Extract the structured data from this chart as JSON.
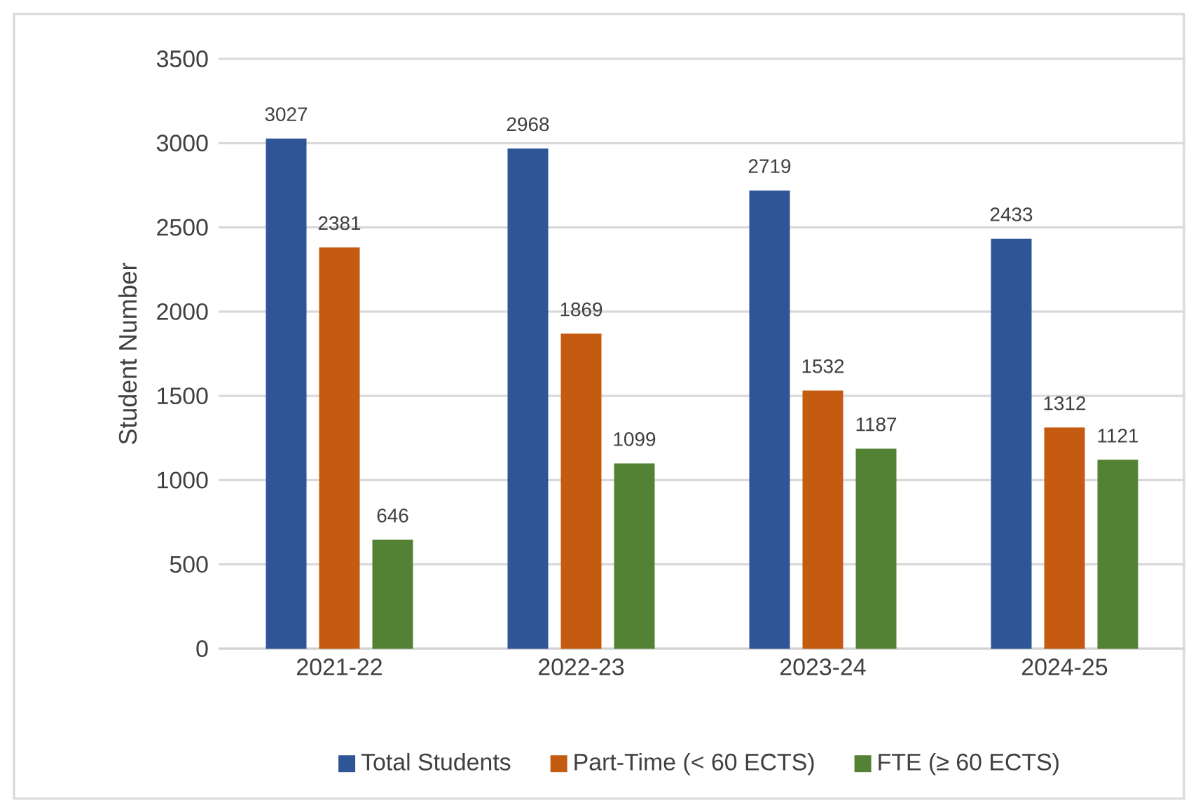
{
  "chart_data": {
    "type": "bar",
    "ylabel": "Student Number",
    "categories": [
      "2021-22",
      "2022-23",
      "2023-24",
      "2024-25"
    ],
    "series": [
      {
        "name": "Total Students",
        "color": "#2f5597",
        "values": [
          3027,
          2968,
          2719,
          2433
        ]
      },
      {
        "name": "Part-Time (< 60 ECTS)",
        "color": "#c55a11",
        "values": [
          2381,
          1869,
          1532,
          1312
        ]
      },
      {
        "name": "FTE (≥ 60 ECTS)",
        "color": "#548235",
        "values": [
          646,
          1099,
          1187,
          1121
        ]
      }
    ],
    "ylim": [
      0,
      3500
    ],
    "yticks": [
      0,
      500,
      1000,
      1500,
      2000,
      2500,
      3000,
      3500
    ],
    "grid": "y",
    "legend": "bottom",
    "data_labels": true
  }
}
